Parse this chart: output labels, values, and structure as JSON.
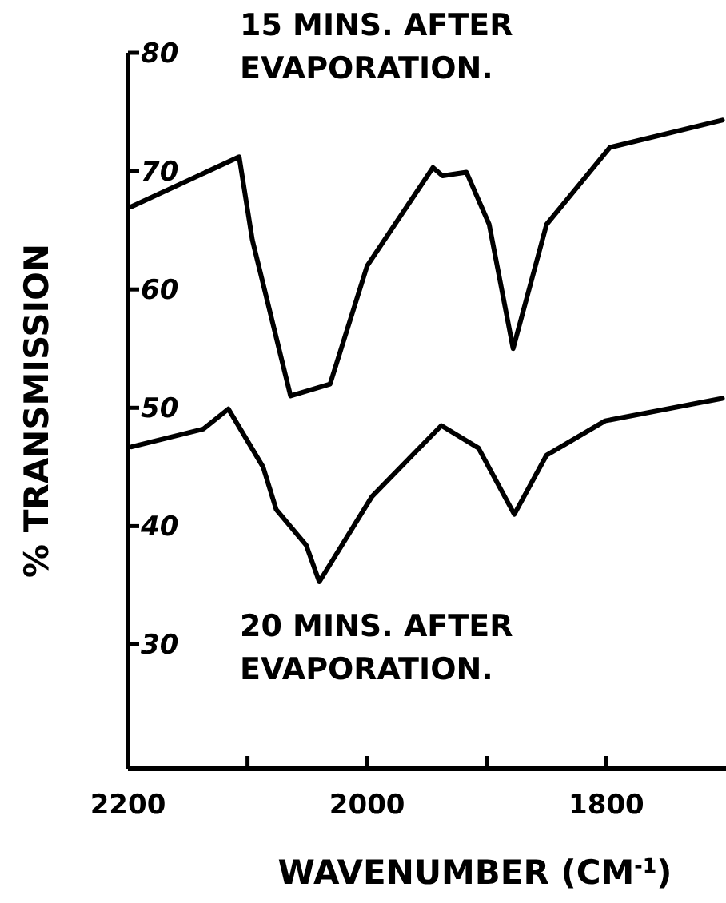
{
  "chart_data": {
    "type": "line",
    "xlabel": "WAVENUMBER (CM$^{-1}$)",
    "ylabel": "% TRANSMISSION",
    "xlim": [
      2200,
      1700
    ],
    "xticks": [
      2200,
      {
        "value": 2100,
        "label": null
      },
      2000,
      {
        "value": 1900,
        "label": null
      },
      1800
    ],
    "ylim": [
      19.5,
      80
    ],
    "yticks": [
      30,
      40,
      50,
      60,
      70,
      80
    ],
    "grid": false,
    "marker": "none",
    "line_style": "solid",
    "series": [
      {
        "name": "15 MINS. AFTER EVAPORATION.",
        "color": "#000000",
        "x": [
          2197,
          2107,
          2096,
          2064,
          2031,
          2000,
          1945,
          1937,
          1917,
          1898,
          1878,
          1850,
          1797,
          1703
        ],
        "values": [
          67,
          71.2,
          64.2,
          51,
          52,
          62,
          70.3,
          69.6,
          69.9,
          65.5,
          55,
          65.5,
          72,
          74.3
        ]
      },
      {
        "name": "20 MINS. AFTER EVAPORATION.",
        "color": "#000000",
        "x": [
          2197,
          2137,
          2116,
          2087,
          2076,
          2051,
          2040,
          1996,
          1938,
          1907,
          1877,
          1850,
          1801,
          1703
        ],
        "values": [
          46.7,
          48.2,
          49.9,
          45,
          41.4,
          38.4,
          35.3,
          42.5,
          48.5,
          46.6,
          41,
          46,
          48.9,
          50.8
        ]
      }
    ]
  }
}
